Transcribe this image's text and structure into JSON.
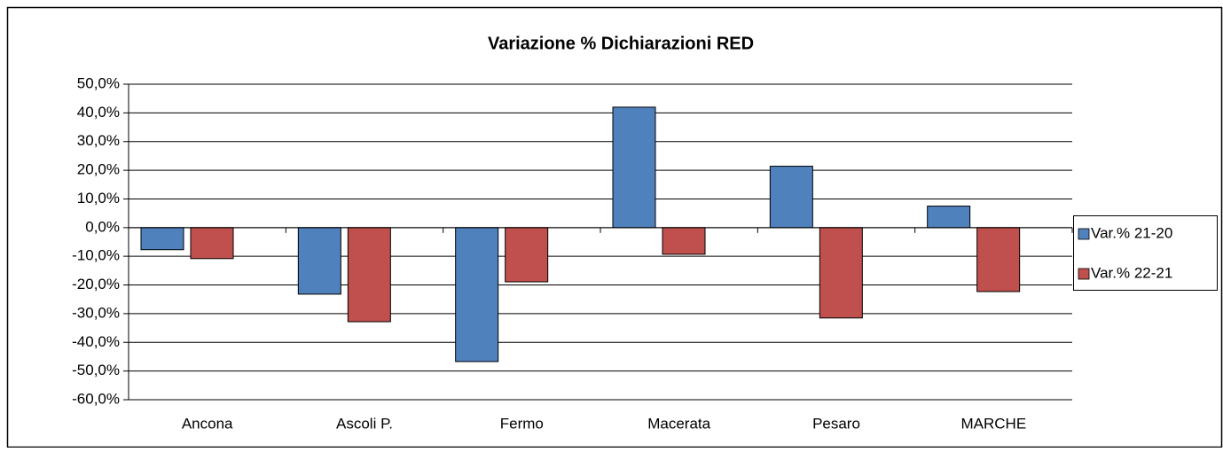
{
  "chart_data": {
    "type": "bar",
    "title": "Variazione % Dichiarazioni RED",
    "categories": [
      "Ancona",
      "Ascoli P.",
      "Fermo",
      "Macerata",
      "Pesaro",
      "MARCHE"
    ],
    "series": [
      {
        "name": "Var.% 21-20",
        "color": "#4f81bd",
        "values": [
          -7.7,
          -23.2,
          -46.7,
          42.0,
          21.4,
          7.5
        ]
      },
      {
        "name": "Var.% 22-21",
        "color": "#c0504d",
        "values": [
          -10.8,
          -32.8,
          -18.9,
          -9.3,
          -31.5,
          -22.3
        ]
      }
    ],
    "ylim": [
      -60,
      50
    ],
    "yticks": [
      {
        "value": -60,
        "label": "-60,0%"
      },
      {
        "value": -50,
        "label": "-50,0%"
      },
      {
        "value": -40,
        "label": "-40,0%"
      },
      {
        "value": -30,
        "label": "-30,0%"
      },
      {
        "value": -20,
        "label": "-20,0%"
      },
      {
        "value": -10,
        "label": "-10,0%"
      },
      {
        "value": 0,
        "label": "0,0%"
      },
      {
        "value": 10,
        "label": "10,0%"
      },
      {
        "value": 20,
        "label": "20,0%"
      },
      {
        "value": 30,
        "label": "30,0%"
      },
      {
        "value": 40,
        "label": "40,0%"
      },
      {
        "value": 50,
        "label": "50,0%"
      }
    ],
    "grid": true,
    "legend": "right"
  }
}
